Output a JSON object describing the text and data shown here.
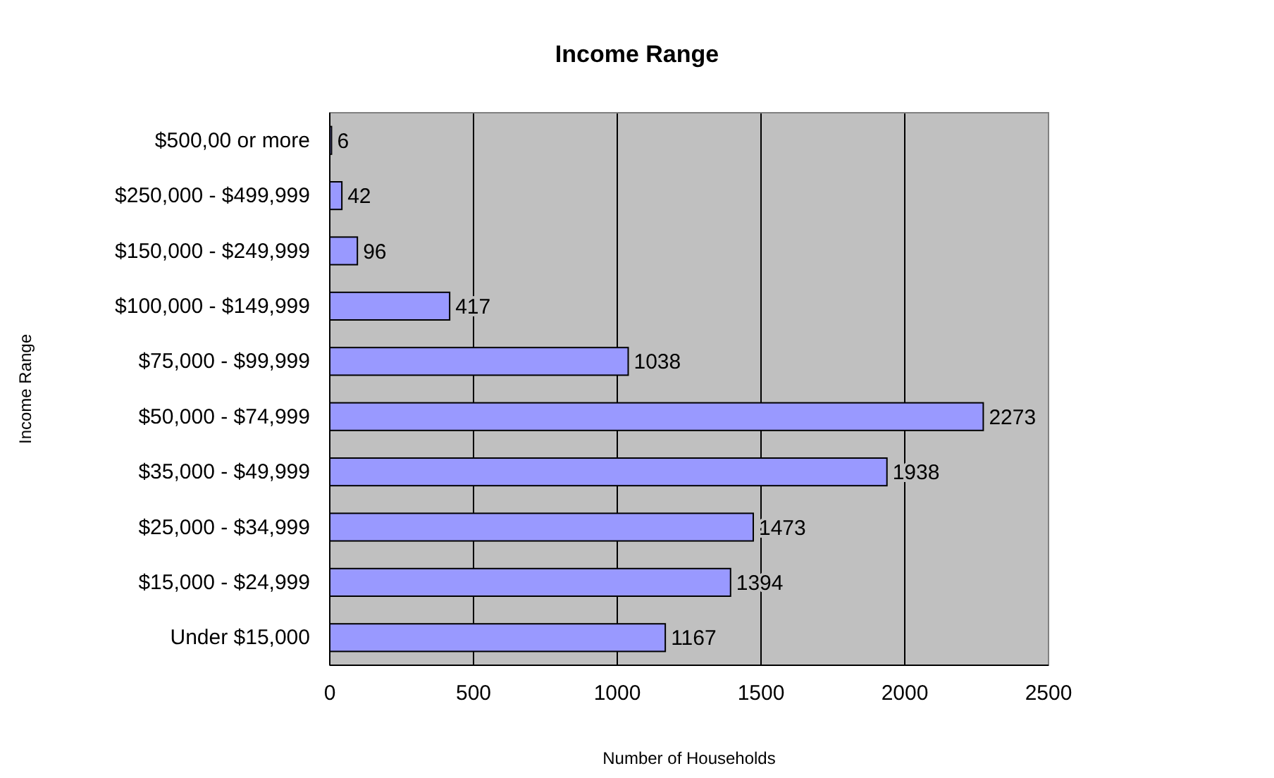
{
  "chart_data": {
    "type": "bar",
    "orientation": "horizontal",
    "title": "Income Range",
    "xlabel": "Number of Households",
    "ylabel": "Income Range",
    "categories": [
      "$500,00 or more",
      "$250,000 - $499,999",
      "$150,000 - $249,999",
      "$100,000 - $149,999",
      "$75,000 - $99,999",
      "$50,000 - $74,999",
      "$35,000 - $49,999",
      "$25,000 - $34,999",
      "$15,000 - $24,999",
      "Under $15,000"
    ],
    "values": [
      6,
      42,
      96,
      417,
      1038,
      2273,
      1938,
      1473,
      1394,
      1167
    ],
    "color": "#9999ff",
    "xlim": [
      0,
      2500
    ],
    "xticks": [
      0,
      500,
      1000,
      1500,
      2000,
      2500
    ],
    "grid": "x",
    "data_labels": true
  }
}
